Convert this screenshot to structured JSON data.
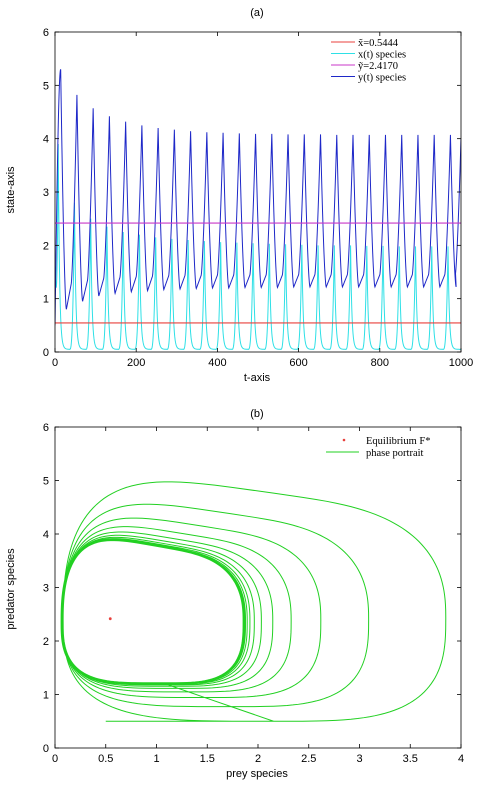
{
  "chart_data": [
    {
      "type": "line",
      "title": "(a)",
      "xlabel": "t-axis",
      "ylabel": "state-axis",
      "xlim": [
        0,
        1000
      ],
      "ylim": [
        0,
        6
      ],
      "x_ticks": [
        0,
        200,
        400,
        600,
        800,
        1000
      ],
      "y_ticks": [
        0,
        1,
        2,
        3,
        4,
        5,
        6
      ],
      "grid": false,
      "legend_position": "top-right",
      "series": [
        {
          "name": "x̃=0.5444",
          "kind": "hline",
          "value": 0.5444,
          "color": "#e8403c"
        },
        {
          "name": "x(t) species",
          "kind": "oscillation",
          "color": "#2ee0e6",
          "peak_times": [
            8,
            48,
            88,
            128,
            168,
            208,
            248,
            288,
            328,
            368,
            408,
            448,
            488,
            528,
            568,
            608,
            648,
            688,
            728,
            768,
            808,
            848,
            888,
            928,
            968
          ],
          "peak_values": [
            3.9,
            2.8,
            2.5,
            2.35,
            2.25,
            2.2,
            2.15,
            2.12,
            2.1,
            2.08,
            2.06,
            2.05,
            2.04,
            2.03,
            2.02,
            2.01,
            2.0,
            2.0,
            2.0,
            1.99,
            1.99,
            1.98,
            1.98,
            1.98,
            1.98
          ],
          "trough_value": 0.05
        },
        {
          "name": "ỹ=2.4170",
          "kind": "hline",
          "value": 2.417,
          "color": "#c837c8"
        },
        {
          "name": "y(t) species",
          "kind": "oscillation",
          "color": "#1e28c8",
          "peak_times": [
            14,
            54,
            94,
            134,
            174,
            214,
            254,
            294,
            334,
            374,
            414,
            454,
            494,
            534,
            574,
            614,
            654,
            694,
            734,
            774,
            814,
            854,
            894,
            934,
            974
          ],
          "peak_values": [
            5.3,
            4.82,
            4.57,
            4.42,
            4.32,
            4.25,
            4.2,
            4.17,
            4.14,
            4.12,
            4.11,
            4.1,
            4.09,
            4.09,
            4.08,
            4.08,
            4.08,
            4.07,
            4.07,
            4.07,
            4.07,
            4.07,
            4.07,
            4.07,
            4.07
          ],
          "trough_values": [
            0.8,
            0.95,
            1.05,
            1.1,
            1.13,
            1.15,
            1.17,
            1.18,
            1.19,
            1.2,
            1.2,
            1.21,
            1.21,
            1.21,
            1.22,
            1.22,
            1.22,
            1.22,
            1.22,
            1.22,
            1.22,
            1.22,
            1.22,
            1.22,
            1.22
          ],
          "start_value": 0.5,
          "end_value": 4.0
        }
      ]
    },
    {
      "type": "line",
      "title": "(b)",
      "xlabel": "prey species",
      "ylabel": "predator species",
      "xlim": [
        0,
        4
      ],
      "ylim": [
        0,
        6
      ],
      "x_ticks": [
        0,
        0.5,
        1,
        1.5,
        2,
        2.5,
        3,
        3.5,
        4
      ],
      "y_ticks": [
        0,
        1,
        2,
        3,
        4,
        5,
        6
      ],
      "grid": false,
      "legend_position": "top-right",
      "equilibrium": {
        "name": "Equilibrium F*",
        "x": 0.5444,
        "y": 2.417,
        "color": "#e8403c"
      },
      "phase_portrait": {
        "name": "phase portrait",
        "color": "#22d022",
        "start": [
          0.5,
          0.5
        ],
        "first_loop": {
          "x_max": 3.85,
          "y_min": 0.5,
          "y_max": 5.32,
          "x_min": 0.08
        },
        "limit_cycle": {
          "x_min": 0.08,
          "x_max": 1.85,
          "y_min": 1.22,
          "y_max": 4.08
        }
      }
    }
  ]
}
